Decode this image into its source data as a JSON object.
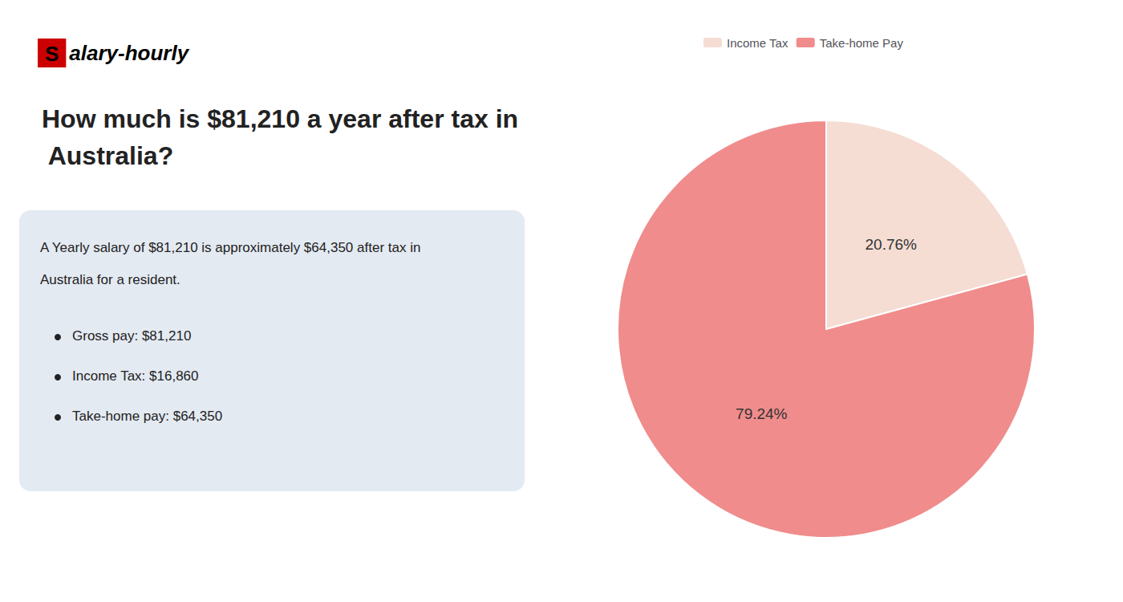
{
  "chart_data": {
    "type": "pie",
    "title": "How much is $81,210 a year after tax in Australia?",
    "categories": [
      "Income Tax",
      "Take-home Pay"
    ],
    "values": [
      20.76,
      79.24
    ],
    "value_labels": [
      "20.76%",
      "79.24%"
    ],
    "colors": [
      "#f5ddd4",
      "#f08c8c"
    ],
    "data_labels": true,
    "legend": "top",
    "annotations": [
      "Salary-hourly",
      "A Yearly salary of $81,210 is approximately $64,350 after tax in",
      "Australia for a resident.",
      "Gross pay: $81,210",
      "Income Tax: $16,860",
      "Take-home pay: $64,350"
    ]
  }
}
